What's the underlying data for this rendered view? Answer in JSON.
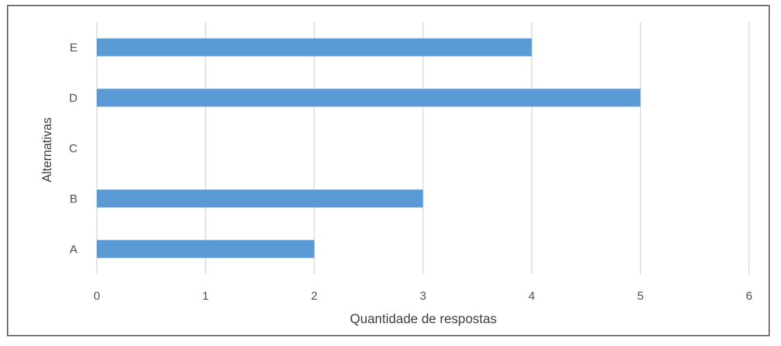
{
  "chart_data": {
    "type": "bar",
    "orientation": "horizontal",
    "categories": [
      "A",
      "B",
      "C",
      "D",
      "E"
    ],
    "values": [
      2,
      3,
      0,
      5,
      4
    ],
    "xlabel": "Quantidade de respostas",
    "ylabel": "Alternativas",
    "xlim": [
      0,
      6
    ],
    "xticks": [
      "0",
      "1",
      "2",
      "3",
      "4",
      "5",
      "6"
    ],
    "grid": "vertical",
    "bar_color": "#5b9bd5",
    "grid_color": "#d9d9d9"
  }
}
